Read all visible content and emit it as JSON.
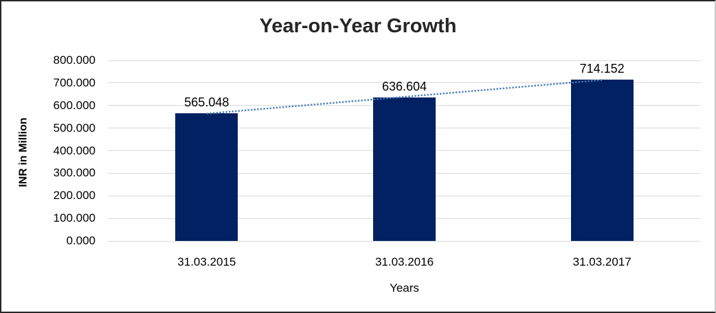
{
  "chart_data": {
    "type": "bar",
    "title": "Year-on-Year Growth",
    "xlabel": "Years",
    "ylabel": "INR in Million",
    "categories": [
      "31.03.2015",
      "31.03.2016",
      "31.03.2017"
    ],
    "values": [
      565.048,
      636.604,
      714.152
    ],
    "data_labels": [
      "565.048",
      "636.604",
      "714.152"
    ],
    "ylim": [
      0,
      800
    ],
    "ytick_step": 100,
    "ytick_labels": [
      "0.000",
      "100.000",
      "200.000",
      "300.000",
      "400.000",
      "500.000",
      "600.000",
      "700.000",
      "800.000"
    ],
    "grid": true,
    "legend": "none",
    "trendline": {
      "type": "linear",
      "style": "dotted",
      "color": "#4A7EBB"
    },
    "colors": {
      "bar": "#022162",
      "gridline": "#D9D9D9",
      "title": "#262626",
      "text": "#000000"
    }
  }
}
